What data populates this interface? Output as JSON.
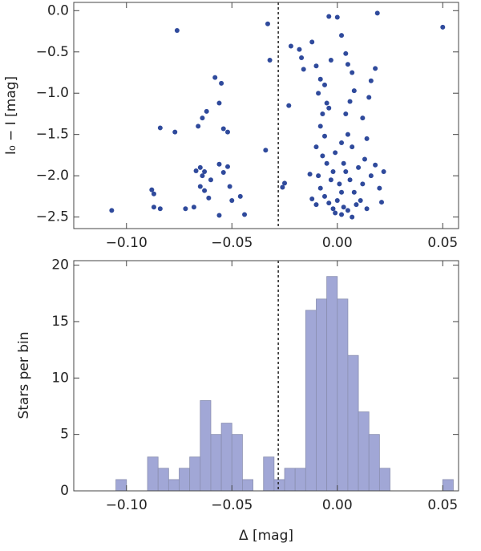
{
  "chart_data": [
    {
      "type": "scatter",
      "ylabel": "I₀ − I [mag]",
      "color": "#2f4a9c",
      "xlim": [
        -0.125,
        0.0575
      ],
      "ylim": [
        -2.64,
        0.1
      ],
      "xticks": [
        {
          "value": -0.1,
          "label": "−0.10"
        },
        {
          "value": -0.05,
          "label": "−0.05"
        },
        {
          "value": 0,
          "label": "0.00"
        },
        {
          "value": 0.05,
          "label": "0.05"
        }
      ],
      "yticks": [
        {
          "value": 0,
          "label": "0.0"
        },
        {
          "value": -0.5,
          "label": "−0.5"
        },
        {
          "value": -1,
          "label": "−1.0"
        },
        {
          "value": -1.5,
          "label": "−1.5"
        },
        {
          "value": -2,
          "label": "−2.0"
        },
        {
          "value": -2.5,
          "label": "−2.5"
        }
      ],
      "reference_x": -0.028,
      "x": [
        -0.076,
        -0.058,
        -0.055,
        -0.062,
        -0.064,
        -0.056,
        -0.066,
        -0.084,
        -0.077,
        -0.054,
        -0.052,
        -0.034,
        -0.065,
        -0.063,
        -0.064,
        -0.065,
        -0.063,
        -0.061,
        -0.056,
        -0.054,
        -0.052,
        -0.051,
        -0.05,
        -0.088,
        -0.087,
        -0.087,
        -0.084,
        -0.072,
        -0.068,
        -0.107,
        -0.056,
        -0.044,
        -0.046,
        -0.067,
        -0.06,
        -0.033,
        -0.032,
        -0.025,
        -0.026,
        -0.023,
        -0.022,
        -0.018,
        -0.016,
        -0.017,
        -0.012,
        -0.01,
        -0.008,
        -0.006,
        -0.009,
        -0.005,
        -0.007,
        -0.004,
        -0.008,
        -0.006,
        -0.01,
        -0.007,
        -0.005,
        -0.009,
        -0.003,
        -0.008,
        -0.006,
        -0.004,
        -0.01,
        -0.002,
        0,
        0.002,
        0.001,
        -0.002,
        0.003,
        -0.001,
        0.002,
        -0.003,
        -0.004,
        0.002,
        0.004,
        0.005,
        0.007,
        0.008,
        0.006,
        0.004,
        0.005,
        0.007,
        0.004,
        0.006,
        0.008,
        0.003,
        0.002,
        0.005,
        0.009,
        0.011,
        0.012,
        0.01,
        0.013,
        0.014,
        0.012,
        0.015,
        0.016,
        0.018,
        0.019,
        0.014,
        0.016,
        0.018,
        0.021,
        0.022,
        0.02,
        0,
        0.05,
        -0.001,
        0.007,
        -0.012,
        -0.013
      ],
      "values": [
        -0.24,
        -0.81,
        -0.88,
        -1.22,
        -1.3,
        -1.12,
        -1.4,
        -1.42,
        -1.47,
        -1.43,
        -1.47,
        -1.69,
        -1.9,
        -1.95,
        -2,
        -2.13,
        -2.18,
        -2.27,
        -1.86,
        -1.96,
        -1.89,
        -2.13,
        -2.3,
        -2.17,
        -2.22,
        -2.38,
        -2.4,
        -2.4,
        -2.38,
        -2.42,
        -2.48,
        -2.47,
        -2.25,
        -1.94,
        -2.05,
        -0.16,
        -0.6,
        -2.09,
        -2.14,
        -1.15,
        -0.43,
        -0.47,
        -0.71,
        -0.57,
        -0.38,
        -0.67,
        -0.83,
        -0.9,
        -1,
        -1.12,
        -1.25,
        -1.18,
        -1.4,
        -1.52,
        -1.65,
        -1.76,
        -1.85,
        -2,
        -2.05,
        -2.15,
        -2.25,
        -2.33,
        -2.35,
        -2.4,
        -2.3,
        -2.2,
        -2.1,
        -1.95,
        -1.85,
        -1.72,
        -1.6,
        -0.6,
        -0.07,
        -0.3,
        -0.52,
        -0.65,
        -0.75,
        -0.97,
        -1.1,
        -1.25,
        -1.5,
        -1.65,
        -1.95,
        -2.05,
        -2.2,
        -2.38,
        -2.47,
        -2.42,
        -2.35,
        -2.3,
        -2.1,
        -1.9,
        -1.8,
        -1.55,
        -1.3,
        -1.05,
        -0.85,
        -0.7,
        -0.03,
        -2.4,
        -2,
        -1.87,
        -2.32,
        -1.95,
        -2.15,
        -0.08,
        -0.2,
        -2.45,
        -2.5,
        -2.28,
        -1.98
      ]
    },
    {
      "type": "histogram",
      "xlabel": "Δ [mag]",
      "ylabel": "Stars per bin",
      "color": "#a1a7d6",
      "xlim": [
        -0.125,
        0.0575
      ],
      "ylim": [
        0,
        20.4
      ],
      "xticks": [
        {
          "value": -0.1,
          "label": "−0.10"
        },
        {
          "value": -0.05,
          "label": "−0.05"
        },
        {
          "value": 0,
          "label": "0.00"
        },
        {
          "value": 0.05,
          "label": "0.05"
        }
      ],
      "yticks": [
        0,
        5,
        10,
        15,
        20
      ],
      "reference_x": -0.028,
      "bins": [
        -0.105,
        -0.1,
        -0.095,
        -0.09,
        -0.085,
        -0.08,
        -0.075,
        -0.07,
        -0.065,
        -0.06,
        -0.055,
        -0.05,
        -0.045,
        -0.04,
        -0.035,
        -0.03,
        -0.025,
        -0.02,
        -0.015,
        -0.01,
        -0.005,
        0,
        0.005,
        0.01,
        0.015,
        0.02,
        0.025,
        0.03,
        0.035,
        0.04,
        0.045,
        0.05,
        0.055
      ],
      "values": [
        1,
        0,
        0,
        3,
        2,
        1,
        2,
        3,
        8,
        5,
        6,
        5,
        1,
        0,
        3,
        1,
        2,
        2,
        16,
        17,
        19,
        17,
        12,
        7,
        5,
        2,
        0,
        0,
        0,
        0,
        0,
        1
      ]
    }
  ]
}
